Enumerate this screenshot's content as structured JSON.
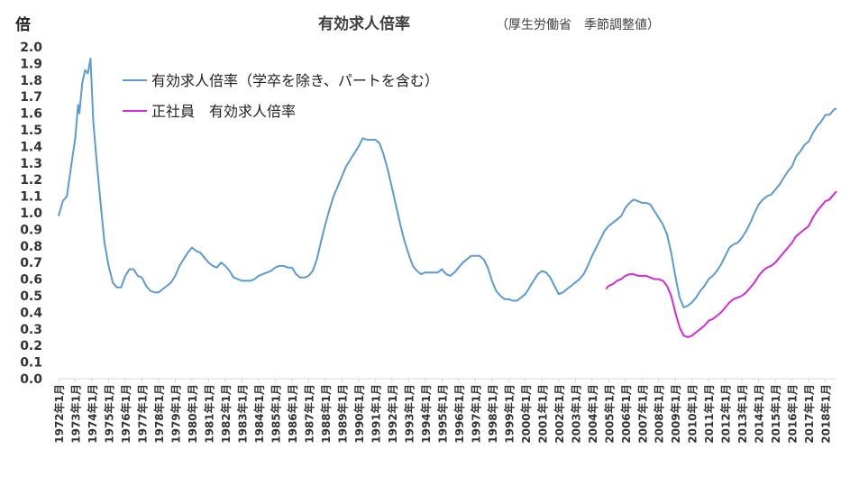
{
  "chart_data": {
    "type": "line",
    "title": "有効求人倍率",
    "subtitle": "（厚生労働省　季節調整値）",
    "ylabel": "倍",
    "xlabel": "",
    "ylim": [
      0,
      2.0
    ],
    "y_ticks": [
      "0.0",
      "0.1",
      "0.2",
      "0.3",
      "0.4",
      "0.5",
      "0.6",
      "0.7",
      "0.8",
      "0.9",
      "1.0",
      "1.1",
      "1.2",
      "1.3",
      "1.4",
      "1.5",
      "1.6",
      "1.7",
      "1.8",
      "1.9",
      "2.0"
    ],
    "x_tick_labels": [
      "1972年1月",
      "1973年1月",
      "1974年1月",
      "1975年1月",
      "1976年1月",
      "1977年1月",
      "1978年1月",
      "1979年1月",
      "1980年1月",
      "1981年1月",
      "1982年1月",
      "1983年1月",
      "1984年1月",
      "1985年1月",
      "1986年1月",
      "1987年1月",
      "1988年1月",
      "1989年1月",
      "1990年1月",
      "1991年1月",
      "1992年1月",
      "1993年1月",
      "1994年1月",
      "1995年1月",
      "1996年1月",
      "1997年1月",
      "1998年1月",
      "1999年1月",
      "2000年1月",
      "2001年1月",
      "2002年1月",
      "2003年1月",
      "2004年1月",
      "2005年1月",
      "2006年1月",
      "2007年1月",
      "2008年1月",
      "2009年1月",
      "2010年1月",
      "2011年1月",
      "2012年1月",
      "2013年1月",
      "2014年1月",
      "2015年1月",
      "2016年1月",
      "2017年1月",
      "2018年1月"
    ],
    "x_range": [
      "1972-01",
      "2018-09"
    ],
    "grid": false,
    "legend_position": "top-left",
    "series": [
      {
        "name": "有効求人倍率（学卒を除き、パートを含む）",
        "color": "#5b9bd5",
        "points": [
          [
            "1972-01",
            0.98
          ],
          [
            "1972-04",
            1.07
          ],
          [
            "1972-07",
            1.1
          ],
          [
            "1972-10",
            1.28
          ],
          [
            "1973-01",
            1.45
          ],
          [
            "1973-03",
            1.65
          ],
          [
            "1973-04",
            1.6
          ],
          [
            "1973-06",
            1.78
          ],
          [
            "1973-08",
            1.86
          ],
          [
            "1973-10",
            1.84
          ],
          [
            "1973-12",
            1.93
          ],
          [
            "1974-02",
            1.55
          ],
          [
            "1974-04",
            1.35
          ],
          [
            "1974-07",
            1.08
          ],
          [
            "1974-10",
            0.82
          ],
          [
            "1975-01",
            0.68
          ],
          [
            "1975-04",
            0.58
          ],
          [
            "1975-07",
            0.55
          ],
          [
            "1975-10",
            0.55
          ],
          [
            "1976-01",
            0.62
          ],
          [
            "1976-04",
            0.66
          ],
          [
            "1976-07",
            0.66
          ],
          [
            "1976-10",
            0.62
          ],
          [
            "1977-01",
            0.61
          ],
          [
            "1977-04",
            0.56
          ],
          [
            "1977-07",
            0.53
          ],
          [
            "1977-10",
            0.52
          ],
          [
            "1978-01",
            0.52
          ],
          [
            "1978-04",
            0.54
          ],
          [
            "1978-07",
            0.56
          ],
          [
            "1978-10",
            0.58
          ],
          [
            "1979-01",
            0.62
          ],
          [
            "1979-04",
            0.68
          ],
          [
            "1979-07",
            0.72
          ],
          [
            "1979-10",
            0.76
          ],
          [
            "1980-01",
            0.79
          ],
          [
            "1980-04",
            0.77
          ],
          [
            "1980-07",
            0.76
          ],
          [
            "1980-10",
            0.73
          ],
          [
            "1981-01",
            0.7
          ],
          [
            "1981-04",
            0.68
          ],
          [
            "1981-07",
            0.67
          ],
          [
            "1981-10",
            0.7
          ],
          [
            "1982-01",
            0.68
          ],
          [
            "1982-04",
            0.65
          ],
          [
            "1982-07",
            0.61
          ],
          [
            "1982-10",
            0.6
          ],
          [
            "1983-01",
            0.59
          ],
          [
            "1983-04",
            0.59
          ],
          [
            "1983-07",
            0.59
          ],
          [
            "1983-10",
            0.6
          ],
          [
            "1984-01",
            0.62
          ],
          [
            "1984-04",
            0.63
          ],
          [
            "1984-07",
            0.64
          ],
          [
            "1984-10",
            0.65
          ],
          [
            "1985-01",
            0.67
          ],
          [
            "1985-04",
            0.68
          ],
          [
            "1985-07",
            0.68
          ],
          [
            "1985-10",
            0.67
          ],
          [
            "1986-01",
            0.67
          ],
          [
            "1986-04",
            0.63
          ],
          [
            "1986-07",
            0.61
          ],
          [
            "1986-10",
            0.61
          ],
          [
            "1987-01",
            0.62
          ],
          [
            "1987-04",
            0.65
          ],
          [
            "1987-07",
            0.72
          ],
          [
            "1987-10",
            0.83
          ],
          [
            "1988-01",
            0.93
          ],
          [
            "1988-04",
            1.02
          ],
          [
            "1988-07",
            1.1
          ],
          [
            "1988-10",
            1.16
          ],
          [
            "1989-01",
            1.22
          ],
          [
            "1989-04",
            1.28
          ],
          [
            "1989-07",
            1.32
          ],
          [
            "1989-10",
            1.36
          ],
          [
            "1990-01",
            1.4
          ],
          [
            "1990-04",
            1.45
          ],
          [
            "1990-07",
            1.44
          ],
          [
            "1990-10",
            1.44
          ],
          [
            "1991-01",
            1.44
          ],
          [
            "1991-04",
            1.42
          ],
          [
            "1991-07",
            1.35
          ],
          [
            "1991-10",
            1.26
          ],
          [
            "1992-01",
            1.15
          ],
          [
            "1992-04",
            1.04
          ],
          [
            "1992-07",
            0.93
          ],
          [
            "1992-10",
            0.83
          ],
          [
            "1993-01",
            0.75
          ],
          [
            "1993-04",
            0.68
          ],
          [
            "1993-07",
            0.65
          ],
          [
            "1993-10",
            0.63
          ],
          [
            "1994-01",
            0.64
          ],
          [
            "1994-04",
            0.64
          ],
          [
            "1994-07",
            0.64
          ],
          [
            "1994-10",
            0.64
          ],
          [
            "1995-01",
            0.66
          ],
          [
            "1995-04",
            0.63
          ],
          [
            "1995-07",
            0.62
          ],
          [
            "1995-10",
            0.64
          ],
          [
            "1996-01",
            0.67
          ],
          [
            "1996-04",
            0.7
          ],
          [
            "1996-07",
            0.72
          ],
          [
            "1996-10",
            0.74
          ],
          [
            "1997-01",
            0.74
          ],
          [
            "1997-04",
            0.74
          ],
          [
            "1997-07",
            0.72
          ],
          [
            "1997-10",
            0.67
          ],
          [
            "1998-01",
            0.59
          ],
          [
            "1998-04",
            0.53
          ],
          [
            "1998-07",
            0.5
          ],
          [
            "1998-10",
            0.48
          ],
          [
            "1999-01",
            0.48
          ],
          [
            "1999-04",
            0.47
          ],
          [
            "1999-07",
            0.47
          ],
          [
            "1999-10",
            0.49
          ],
          [
            "2000-01",
            0.51
          ],
          [
            "2000-04",
            0.55
          ],
          [
            "2000-07",
            0.59
          ],
          [
            "2000-10",
            0.63
          ],
          [
            "2001-01",
            0.65
          ],
          [
            "2001-04",
            0.64
          ],
          [
            "2001-07",
            0.61
          ],
          [
            "2001-10",
            0.56
          ],
          [
            "2002-01",
            0.51
          ],
          [
            "2002-04",
            0.52
          ],
          [
            "2002-07",
            0.54
          ],
          [
            "2002-10",
            0.56
          ],
          [
            "2003-01",
            0.58
          ],
          [
            "2003-04",
            0.6
          ],
          [
            "2003-07",
            0.63
          ],
          [
            "2003-10",
            0.68
          ],
          [
            "2004-01",
            0.74
          ],
          [
            "2004-04",
            0.79
          ],
          [
            "2004-07",
            0.84
          ],
          [
            "2004-10",
            0.89
          ],
          [
            "2005-01",
            0.92
          ],
          [
            "2005-04",
            0.94
          ],
          [
            "2005-07",
            0.96
          ],
          [
            "2005-10",
            0.98
          ],
          [
            "2006-01",
            1.03
          ],
          [
            "2006-04",
            1.06
          ],
          [
            "2006-07",
            1.08
          ],
          [
            "2006-10",
            1.07
          ],
          [
            "2007-01",
            1.06
          ],
          [
            "2007-04",
            1.06
          ],
          [
            "2007-07",
            1.05
          ],
          [
            "2007-10",
            1.01
          ],
          [
            "2008-01",
            0.97
          ],
          [
            "2008-04",
            0.93
          ],
          [
            "2008-07",
            0.87
          ],
          [
            "2008-10",
            0.76
          ],
          [
            "2009-01",
            0.62
          ],
          [
            "2009-04",
            0.49
          ],
          [
            "2009-07",
            0.43
          ],
          [
            "2009-10",
            0.44
          ],
          [
            "2010-01",
            0.46
          ],
          [
            "2010-04",
            0.49
          ],
          [
            "2010-07",
            0.53
          ],
          [
            "2010-10",
            0.56
          ],
          [
            "2011-01",
            0.6
          ],
          [
            "2011-04",
            0.62
          ],
          [
            "2011-07",
            0.65
          ],
          [
            "2011-10",
            0.69
          ],
          [
            "2012-01",
            0.74
          ],
          [
            "2012-04",
            0.79
          ],
          [
            "2012-07",
            0.81
          ],
          [
            "2012-10",
            0.82
          ],
          [
            "2013-01",
            0.85
          ],
          [
            "2013-04",
            0.89
          ],
          [
            "2013-07",
            0.94
          ],
          [
            "2013-10",
            1.0
          ],
          [
            "2014-01",
            1.05
          ],
          [
            "2014-04",
            1.08
          ],
          [
            "2014-07",
            1.1
          ],
          [
            "2014-10",
            1.11
          ],
          [
            "2015-01",
            1.14
          ],
          [
            "2015-04",
            1.17
          ],
          [
            "2015-07",
            1.21
          ],
          [
            "2015-10",
            1.25
          ],
          [
            "2016-01",
            1.28
          ],
          [
            "2016-04",
            1.34
          ],
          [
            "2016-07",
            1.37
          ],
          [
            "2016-10",
            1.41
          ],
          [
            "2017-01",
            1.43
          ],
          [
            "2017-04",
            1.48
          ],
          [
            "2017-07",
            1.52
          ],
          [
            "2017-10",
            1.55
          ],
          [
            "2018-01",
            1.59
          ],
          [
            "2018-04",
            1.59
          ],
          [
            "2018-07",
            1.62
          ],
          [
            "2018-09",
            1.63
          ]
        ]
      },
      {
        "name": "正社員　有効求人倍率",
        "color": "#d62ad6",
        "points": [
          [
            "2004-11",
            0.54
          ],
          [
            "2005-01",
            0.56
          ],
          [
            "2005-04",
            0.57
          ],
          [
            "2005-07",
            0.59
          ],
          [
            "2005-10",
            0.6
          ],
          [
            "2006-01",
            0.62
          ],
          [
            "2006-04",
            0.63
          ],
          [
            "2006-07",
            0.63
          ],
          [
            "2006-10",
            0.62
          ],
          [
            "2007-01",
            0.62
          ],
          [
            "2007-04",
            0.62
          ],
          [
            "2007-07",
            0.61
          ],
          [
            "2007-10",
            0.6
          ],
          [
            "2008-01",
            0.6
          ],
          [
            "2008-04",
            0.59
          ],
          [
            "2008-07",
            0.56
          ],
          [
            "2008-10",
            0.5
          ],
          [
            "2009-01",
            0.4
          ],
          [
            "2009-04",
            0.31
          ],
          [
            "2009-07",
            0.26
          ],
          [
            "2009-10",
            0.25
          ],
          [
            "2010-01",
            0.26
          ],
          [
            "2010-04",
            0.28
          ],
          [
            "2010-07",
            0.3
          ],
          [
            "2010-10",
            0.32
          ],
          [
            "2011-01",
            0.35
          ],
          [
            "2011-04",
            0.36
          ],
          [
            "2011-07",
            0.38
          ],
          [
            "2011-10",
            0.4
          ],
          [
            "2012-01",
            0.43
          ],
          [
            "2012-04",
            0.46
          ],
          [
            "2012-07",
            0.48
          ],
          [
            "2012-10",
            0.49
          ],
          [
            "2013-01",
            0.5
          ],
          [
            "2013-04",
            0.52
          ],
          [
            "2013-07",
            0.55
          ],
          [
            "2013-10",
            0.58
          ],
          [
            "2014-01",
            0.62
          ],
          [
            "2014-04",
            0.65
          ],
          [
            "2014-07",
            0.67
          ],
          [
            "2014-10",
            0.68
          ],
          [
            "2015-01",
            0.7
          ],
          [
            "2015-04",
            0.73
          ],
          [
            "2015-07",
            0.76
          ],
          [
            "2015-10",
            0.79
          ],
          [
            "2016-01",
            0.82
          ],
          [
            "2016-04",
            0.86
          ],
          [
            "2016-07",
            0.88
          ],
          [
            "2016-10",
            0.9
          ],
          [
            "2017-01",
            0.92
          ],
          [
            "2017-04",
            0.97
          ],
          [
            "2017-07",
            1.01
          ],
          [
            "2017-10",
            1.04
          ],
          [
            "2018-01",
            1.07
          ],
          [
            "2018-04",
            1.08
          ],
          [
            "2018-07",
            1.11
          ],
          [
            "2018-09",
            1.13
          ]
        ]
      }
    ]
  }
}
